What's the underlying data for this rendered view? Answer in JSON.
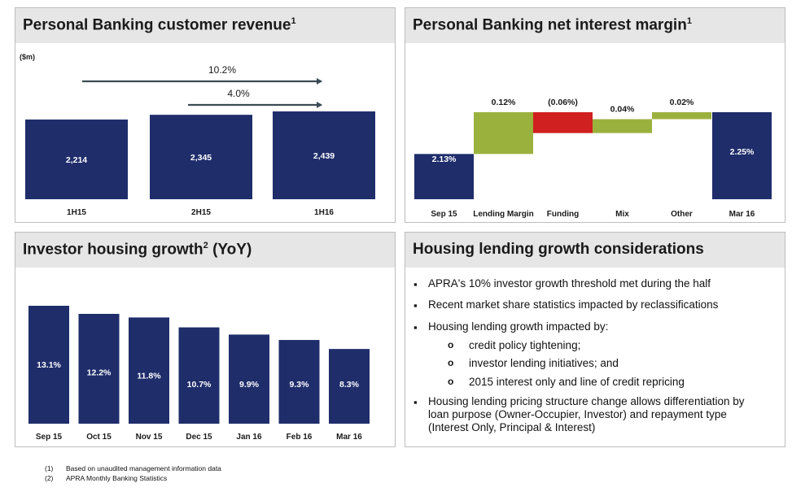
{
  "panels": {
    "revenue": {
      "title": "Personal Banking customer revenue",
      "title_sup": "1",
      "unit": "($m)",
      "chart_data": {
        "type": "bar",
        "title": "Personal Banking customer revenue",
        "categories": [
          "1H15",
          "2H15",
          "1H16"
        ],
        "values": [
          2214,
          2345,
          2439
        ],
        "value_labels": [
          "2,214",
          "2,345",
          "2,439"
        ],
        "ylabel": "($m)",
        "annotations": [
          {
            "label": "10.2%",
            "from": "1H15",
            "to": "1H16"
          },
          {
            "label": "4.0%",
            "from": "2H15",
            "to": "1H16"
          }
        ],
        "bar_color": "#1f2d6b",
        "grid": false
      }
    },
    "nim": {
      "title": "Personal Banking net interest margin",
      "title_sup": "1",
      "chart_data": {
        "type": "bar",
        "subtype": "waterfall",
        "title": "Personal Banking net interest margin",
        "categories": [
          "Sep 15",
          "Lending Margin",
          "Funding",
          "Mix",
          "Other",
          "Mar 16"
        ],
        "values": [
          2.13,
          0.12,
          -0.06,
          0.04,
          0.02,
          2.25
        ],
        "value_labels": [
          "2.13%",
          "0.12%",
          "(0.06%)",
          "0.04%",
          "0.02%",
          "2.25%"
        ],
        "kinds": [
          "total",
          "delta",
          "delta",
          "delta",
          "delta",
          "total"
        ],
        "colors": {
          "total": "#1f2d6b",
          "increase": "#9bb13e",
          "decrease": "#d0201f"
        },
        "grid": false
      }
    },
    "investor": {
      "title": "Investor housing growth",
      "title_sup": "2",
      "title_suffix": " (YoY)",
      "chart_data": {
        "type": "bar",
        "title": "Investor housing growth (YoY)",
        "categories": [
          "Sep 15",
          "Oct 15",
          "Nov 15",
          "Dec 15",
          "Jan 16",
          "Feb 16",
          "Mar 16"
        ],
        "values": [
          13.1,
          12.2,
          11.8,
          10.7,
          9.9,
          9.3,
          8.3
        ],
        "value_labels": [
          "13.1%",
          "12.2%",
          "11.8%",
          "10.7%",
          "9.9%",
          "9.3%",
          "8.3%"
        ],
        "bar_color": "#1f2d6b",
        "grid": false
      }
    },
    "housing": {
      "title": "Housing lending growth considerations",
      "bullets": [
        "APRA's 10% investor growth threshold met during the half",
        "Recent market share statistics impacted by reclassifications",
        "Housing lending growth impacted by:",
        "Housing lending pricing structure change allows differentiation by",
        "loan purpose (Owner-Occupier, Investor) and repayment type",
        "(Interest Only, Principal & Interest)"
      ],
      "subbullets": [
        "credit policy tightening;",
        "investor lending initiatives; and",
        "2015 interest only and line of credit repricing"
      ],
      "bullet_glyph": "▪",
      "sub_glyph": "o"
    }
  },
  "footnotes": [
    {
      "num": "(1)",
      "text": "Based on unaudited management information data"
    },
    {
      "num": "(2)",
      "text": "APRA Monthly Banking Statistics"
    }
  ]
}
